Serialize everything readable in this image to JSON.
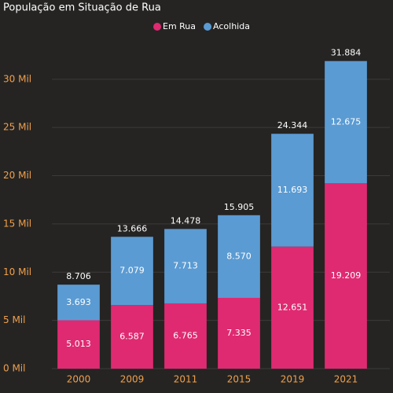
{
  "chart_data": {
    "type": "stacked_bar",
    "title": "População em Situação de Rua",
    "categories": [
      "2000",
      "2009",
      "2011",
      "2015",
      "2019",
      "2021"
    ],
    "series": [
      {
        "name": "Em Rua",
        "color": "#df2a71",
        "values": [
          5013,
          6587,
          6765,
          7335,
          12651,
          19209
        ],
        "value_labels": [
          "5.013",
          "6.587",
          "6.765",
          "7.335",
          "12.651",
          "19.209"
        ]
      },
      {
        "name": "Acolhida",
        "color": "#5b9bd3",
        "values": [
          3693,
          7079,
          7713,
          8570,
          11693,
          12675
        ],
        "value_labels": [
          "3.693",
          "7.079",
          "7.713",
          "8.570",
          "11.693",
          "12.675"
        ]
      }
    ],
    "totals": {
      "values": [
        8706,
        13666,
        14478,
        15905,
        24344,
        31884
      ],
      "value_labels": [
        "8.706",
        "13.666",
        "14.478",
        "15.905",
        "24.344",
        "31.884"
      ]
    },
    "ylim": [
      0,
      33000
    ],
    "yticks": [
      {
        "value": 0,
        "label": "0 Mil"
      },
      {
        "value": 5000,
        "label": "5 Mil"
      },
      {
        "value": 10000,
        "label": "10 Mil"
      },
      {
        "value": 15000,
        "label": "15 Mil"
      },
      {
        "value": 20000,
        "label": "20 Mil"
      },
      {
        "value": 25000,
        "label": "25 Mil"
      },
      {
        "value": 30000,
        "label": "30 Mil"
      }
    ],
    "grid": true,
    "legend": "top"
  }
}
